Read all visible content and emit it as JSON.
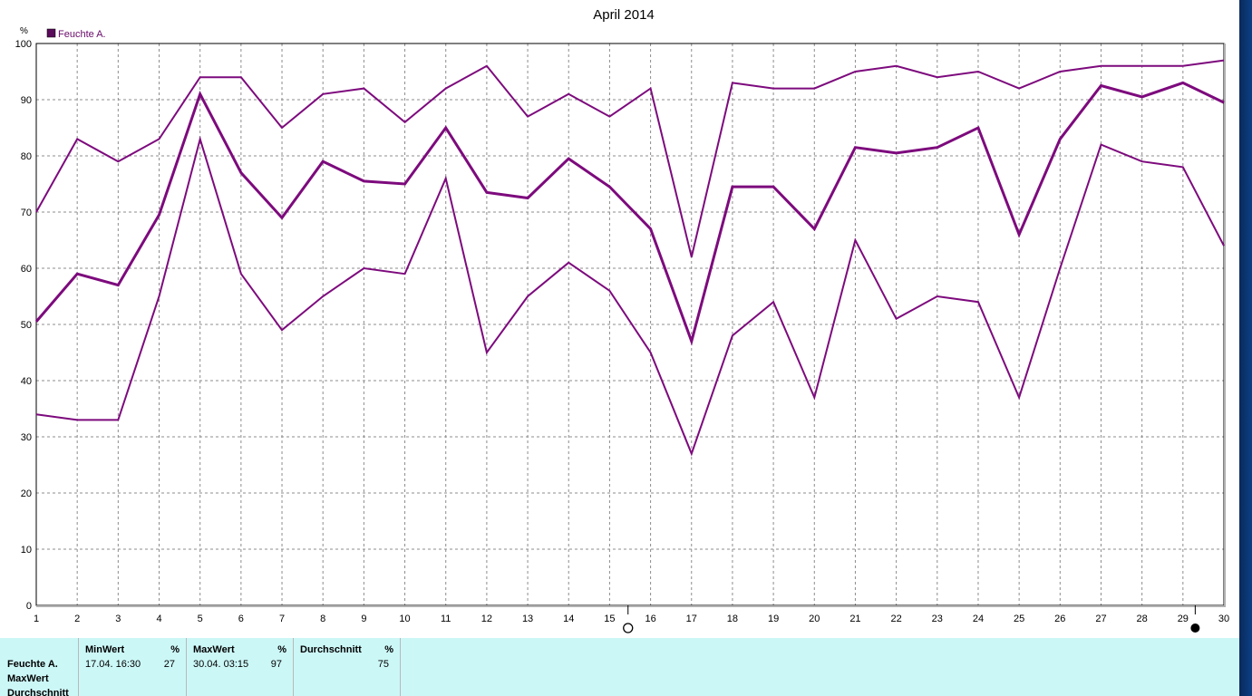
{
  "chart_data": {
    "type": "line",
    "title": "April 2014",
    "ylabel": "%",
    "ylim": [
      0,
      100
    ],
    "y_ticks": [
      "0",
      "10",
      "20",
      "30",
      "40",
      "50",
      "60",
      "70",
      "80",
      "90",
      "100"
    ],
    "x": [
      1,
      2,
      3,
      4,
      5,
      6,
      7,
      8,
      9,
      10,
      11,
      12,
      13,
      14,
      15,
      16,
      17,
      18,
      19,
      20,
      21,
      22,
      23,
      24,
      25,
      26,
      27,
      28,
      29,
      30
    ],
    "x_tick_labels": [
      "1",
      "2",
      "3",
      "4",
      "5",
      "6",
      "7",
      "8",
      "9",
      "10",
      "11",
      "12",
      "13",
      "14",
      "15",
      "16",
      "17",
      "18",
      "19",
      "20",
      "21",
      "22",
      "23",
      "24",
      "25",
      "26",
      "27",
      "28",
      "29",
      "30"
    ],
    "xlim": [
      1,
      30
    ],
    "grid": true,
    "legend": {
      "entries": [
        "Feuchte A."
      ],
      "placement": "top-left"
    },
    "series": [
      {
        "name": "Feuchte A.",
        "role": "max",
        "values": [
          70,
          83,
          79,
          83,
          94,
          94,
          85,
          91,
          92,
          86,
          92,
          96,
          87,
          91,
          87,
          92,
          62,
          93,
          92,
          92,
          95,
          96,
          94,
          95,
          92,
          95,
          96,
          96,
          96,
          97
        ]
      },
      {
        "name": "Feuchte A.",
        "role": "average",
        "values": [
          50.5,
          59,
          57,
          69.5,
          91,
          77,
          69,
          79,
          75.5,
          75,
          85,
          73.5,
          72.5,
          79.5,
          74.5,
          67,
          47,
          74.5,
          74.5,
          67,
          81.5,
          80.5,
          81.5,
          85,
          66,
          83,
          92.5,
          90.5,
          93,
          89.5
        ]
      },
      {
        "name": "Feuchte A.",
        "role": "min",
        "values": [
          34,
          33,
          33,
          55,
          83,
          59,
          49,
          55,
          60,
          59,
          76,
          45,
          55,
          61,
          56,
          45,
          27,
          48,
          54,
          37,
          65,
          51,
          55,
          54,
          37,
          60,
          82,
          79,
          78,
          64
        ]
      }
    ],
    "annotations": [
      {
        "type": "full-moon",
        "x": 15.45
      },
      {
        "type": "new-moon",
        "x": 29.3
      }
    ],
    "colors": {
      "line": "#7d0a7d",
      "legend_swatch": "#5a0a5a",
      "grid": "#8c8c8c",
      "axis": "#000000"
    }
  },
  "stats": {
    "row_labels": [
      "Feuchte A.",
      "MaxWert",
      "Durchschnitt"
    ],
    "columns": [
      {
        "header": "MinWert",
        "unit": "%",
        "date": "17.04.  16:30",
        "value": "27"
      },
      {
        "header": "MaxWert",
        "unit": "%",
        "date": "30.04.  03:15",
        "value": "97"
      },
      {
        "header": "Durchschnitt",
        "unit": "%",
        "date": "",
        "value": "75"
      }
    ],
    "background": "#ccf7f7"
  }
}
